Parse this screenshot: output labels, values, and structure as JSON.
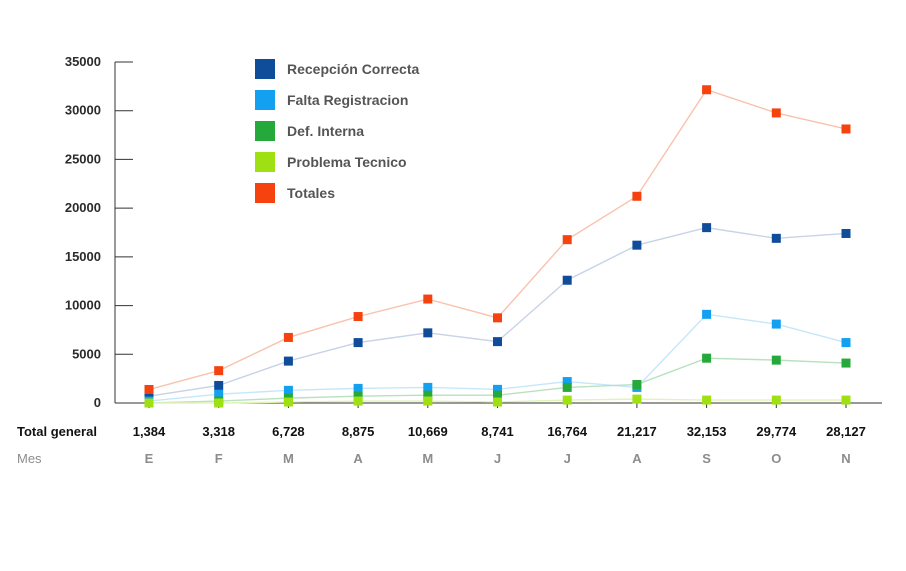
{
  "chart_data": {
    "type": "line",
    "categories": [
      "E",
      "F",
      "M",
      "A",
      "M",
      "J",
      "J",
      "A",
      "S",
      "O",
      "N"
    ],
    "ylim": [
      0,
      35000
    ],
    "yticks": [
      "0",
      "5000",
      "10000",
      "15000",
      "20000",
      "25000",
      "30000",
      "35000"
    ],
    "ytick_values": [
      0,
      5000,
      10000,
      15000,
      20000,
      25000,
      30000,
      35000
    ],
    "legend_position": "top-center",
    "grid": false,
    "series": [
      {
        "name": "Recepción Correcta",
        "color": "#0F4C9A",
        "line_color": "#C7D3E6",
        "values": [
          700,
          1800,
          4300,
          6200,
          7200,
          6300,
          12600,
          16200,
          18000,
          16900,
          17400
        ]
      },
      {
        "name": "Falta Registracion",
        "color": "#13A0F0",
        "line_color": "#C6E7FA",
        "values": [
          200,
          900,
          1300,
          1500,
          1600,
          1400,
          2200,
          1600,
          9100,
          8100,
          6200
        ]
      },
      {
        "name": "Def. Interna",
        "color": "#25A93A",
        "line_color": "#B9E0BF",
        "values": [
          0,
          200,
          500,
          700,
          800,
          800,
          1600,
          1900,
          4600,
          4400,
          4100
        ]
      },
      {
        "name": "Problema Tecnico",
        "color": "#9FE012",
        "line_color": "#E1F3B8",
        "values": [
          0,
          0,
          100,
          200,
          200,
          100,
          300,
          400,
          300,
          300,
          300
        ]
      },
      {
        "name": "Totales",
        "color": "#F5420F",
        "line_color": "#F9C2AD",
        "values": [
          1384,
          3318,
          6728,
          8875,
          10669,
          8741,
          16764,
          21217,
          32153,
          29774,
          28127
        ]
      }
    ],
    "table": {
      "totals_title": "Total general",
      "totals": [
        "1,384",
        "3,318",
        "6,728",
        "8,875",
        "10,669",
        "8,741",
        "16,764",
        "21,217",
        "32,153",
        "29,774",
        "28,127"
      ],
      "months_title": "Mes",
      "months": [
        "E",
        "F",
        "M",
        "A",
        "M",
        "J",
        "J",
        "A",
        "S",
        "O",
        "N"
      ]
    }
  }
}
